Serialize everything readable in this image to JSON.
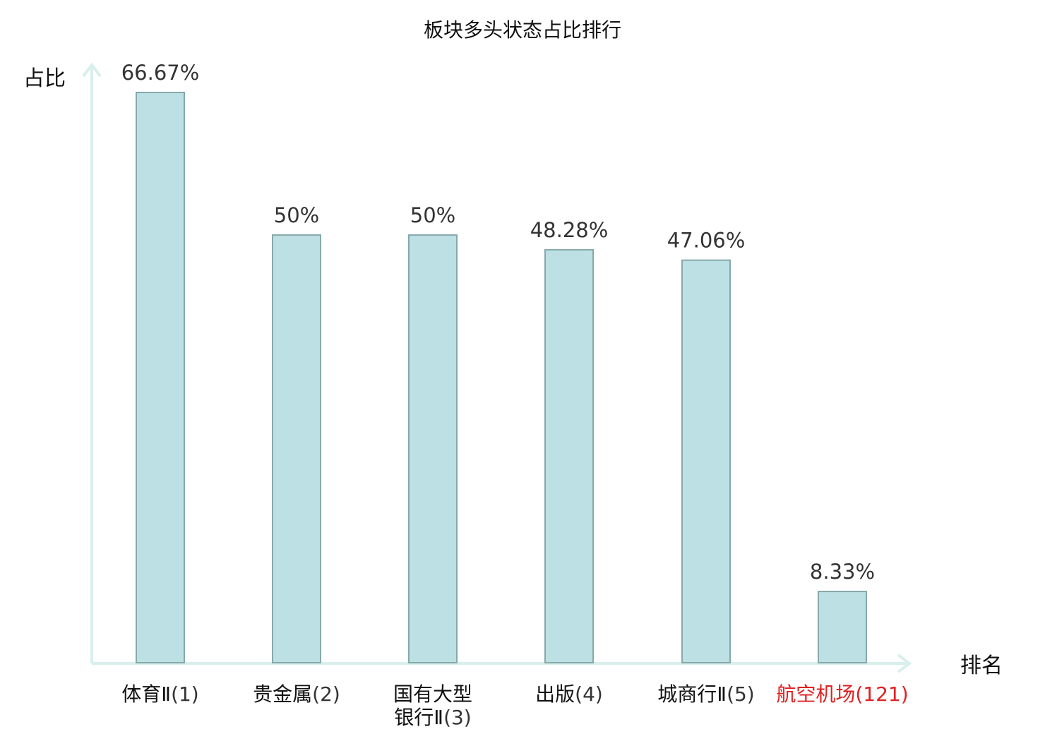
{
  "chart_data": {
    "type": "bar",
    "title": "板块多头状态占比排行",
    "ylabel": "占比",
    "xlabel": "排名",
    "ylim": [
      0,
      70
    ],
    "grid": false,
    "legend": "none",
    "categories": [
      {
        "lines": [
          "体育Ⅱ"
        ],
        "rank": "(1)",
        "highlight": false
      },
      {
        "lines": [
          "贵金属"
        ],
        "rank": "(2)",
        "highlight": false
      },
      {
        "lines": [
          "国有大型",
          "银行Ⅱ"
        ],
        "rank": "(3)",
        "highlight": false
      },
      {
        "lines": [
          "出版"
        ],
        "rank": "(4)",
        "highlight": false
      },
      {
        "lines": [
          "城商行Ⅱ"
        ],
        "rank": "(5)",
        "highlight": false
      },
      {
        "lines": [
          "航空机场"
        ],
        "rank": "(121)",
        "highlight": true
      }
    ],
    "values": [
      66.67,
      50,
      50,
      48.28,
      47.06,
      8.33
    ],
    "value_labels": [
      "66.67%",
      "50%",
      "50%",
      "48.28%",
      "47.06%",
      "8.33%"
    ]
  },
  "colors": {
    "bar_fill": "#bce0e3",
    "bar_stroke": "#86a9ab",
    "axis": "#d8efec",
    "highlight_text": "#e02020",
    "normal_text": "#111111",
    "rank_text": "#333333",
    "value_text": "#333333"
  }
}
